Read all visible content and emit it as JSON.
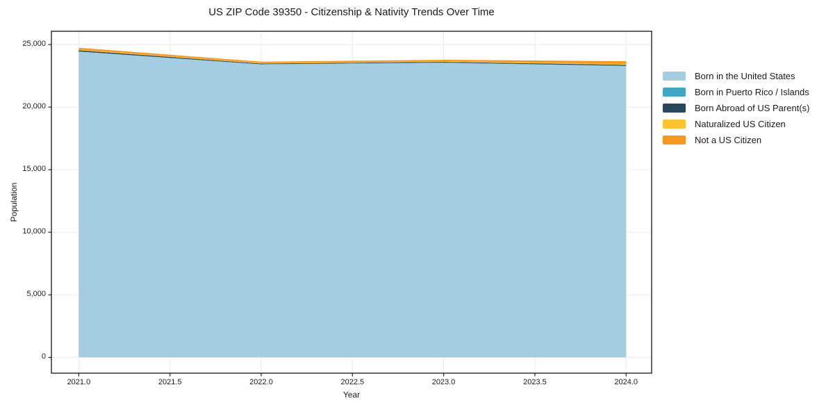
{
  "figure": {
    "background": "#ffffff"
  },
  "chart_data": {
    "type": "area",
    "stacked": true,
    "title": "US ZIP Code 39350 - Citizenship & Nativity Trends Over Time",
    "xlabel": "Year",
    "ylabel": "Population",
    "x": [
      2021,
      2022,
      2023,
      2024
    ],
    "series": [
      {
        "name": "Born in the United States",
        "color": "#a4cde2",
        "values": [
          24430,
          23410,
          23540,
          23280
        ]
      },
      {
        "name": "Born in Puerto Rico / Islands",
        "color": "#41a6c4",
        "values": [
          20,
          15,
          15,
          25
        ]
      },
      {
        "name": "Born Abroad of US Parent(s)",
        "color": "#28485c",
        "values": [
          90,
          55,
          60,
          70
        ]
      },
      {
        "name": "Naturalized US Citizen",
        "color": "#fdc22f",
        "values": [
          60,
          45,
          55,
          75
        ]
      },
      {
        "name": "Not a US Citizen",
        "color": "#f79722",
        "values": [
          140,
          105,
          110,
          220
        ]
      }
    ],
    "xlim": [
      2020.85,
      2024.14
    ],
    "ylim": [
      -1260,
      26060
    ],
    "x_ticks": [
      2021.0,
      2021.5,
      2022.0,
      2022.5,
      2023.0,
      2023.5,
      2024.0
    ],
    "x_tick_labels": [
      "2021.0",
      "2021.5",
      "2022.0",
      "2022.5",
      "2023.0",
      "2023.5",
      "2024.0"
    ],
    "y_ticks": [
      0,
      5000,
      10000,
      15000,
      20000,
      25000
    ],
    "y_tick_labels": [
      "0",
      "5,000",
      "10,000",
      "15,000",
      "20,000",
      "25,000"
    ],
    "grid": true,
    "legend_position": "right-outside",
    "colors": {
      "grid": "#e9e9e9",
      "spine": "#222222",
      "text": "#1a1a1a"
    }
  }
}
